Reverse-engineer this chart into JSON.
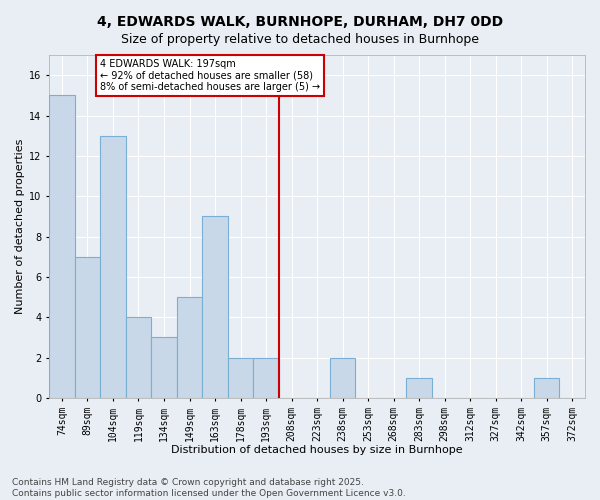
{
  "title": "4, EDWARDS WALK, BURNHOPE, DURHAM, DH7 0DD",
  "subtitle": "Size of property relative to detached houses in Burnhope",
  "xlabel": "Distribution of detached houses by size in Burnhope",
  "ylabel": "Number of detached properties",
  "categories": [
    "74sqm",
    "89sqm",
    "104sqm",
    "119sqm",
    "134sqm",
    "149sqm",
    "163sqm",
    "178sqm",
    "193sqm",
    "208sqm",
    "223sqm",
    "238sqm",
    "253sqm",
    "268sqm",
    "283sqm",
    "298sqm",
    "312sqm",
    "327sqm",
    "342sqm",
    "357sqm",
    "372sqm"
  ],
  "values": [
    15,
    7,
    13,
    4,
    3,
    5,
    9,
    2,
    2,
    0,
    0,
    2,
    0,
    0,
    1,
    0,
    0,
    0,
    0,
    1,
    0
  ],
  "bar_color": "#c8d8e8",
  "bar_edge_color": "#7aafd4",
  "vline_color": "#cc0000",
  "vline_index": 8,
  "annotation_text": "4 EDWARDS WALK: 197sqm\n← 92% of detached houses are smaller (58)\n8% of semi-detached houses are larger (5) →",
  "annotation_box_color": "#ffffff",
  "annotation_box_edge": "#cc0000",
  "ylim": [
    0,
    17
  ],
  "yticks": [
    0,
    2,
    4,
    6,
    8,
    10,
    12,
    14,
    16
  ],
  "bg_color": "#e8eef4",
  "plot_bg_color": "#e8eef4",
  "footer": "Contains HM Land Registry data © Crown copyright and database right 2025.\nContains public sector information licensed under the Open Government Licence v3.0.",
  "title_fontsize": 10,
  "subtitle_fontsize": 9,
  "label_fontsize": 8,
  "tick_fontsize": 7,
  "footer_fontsize": 6.5
}
